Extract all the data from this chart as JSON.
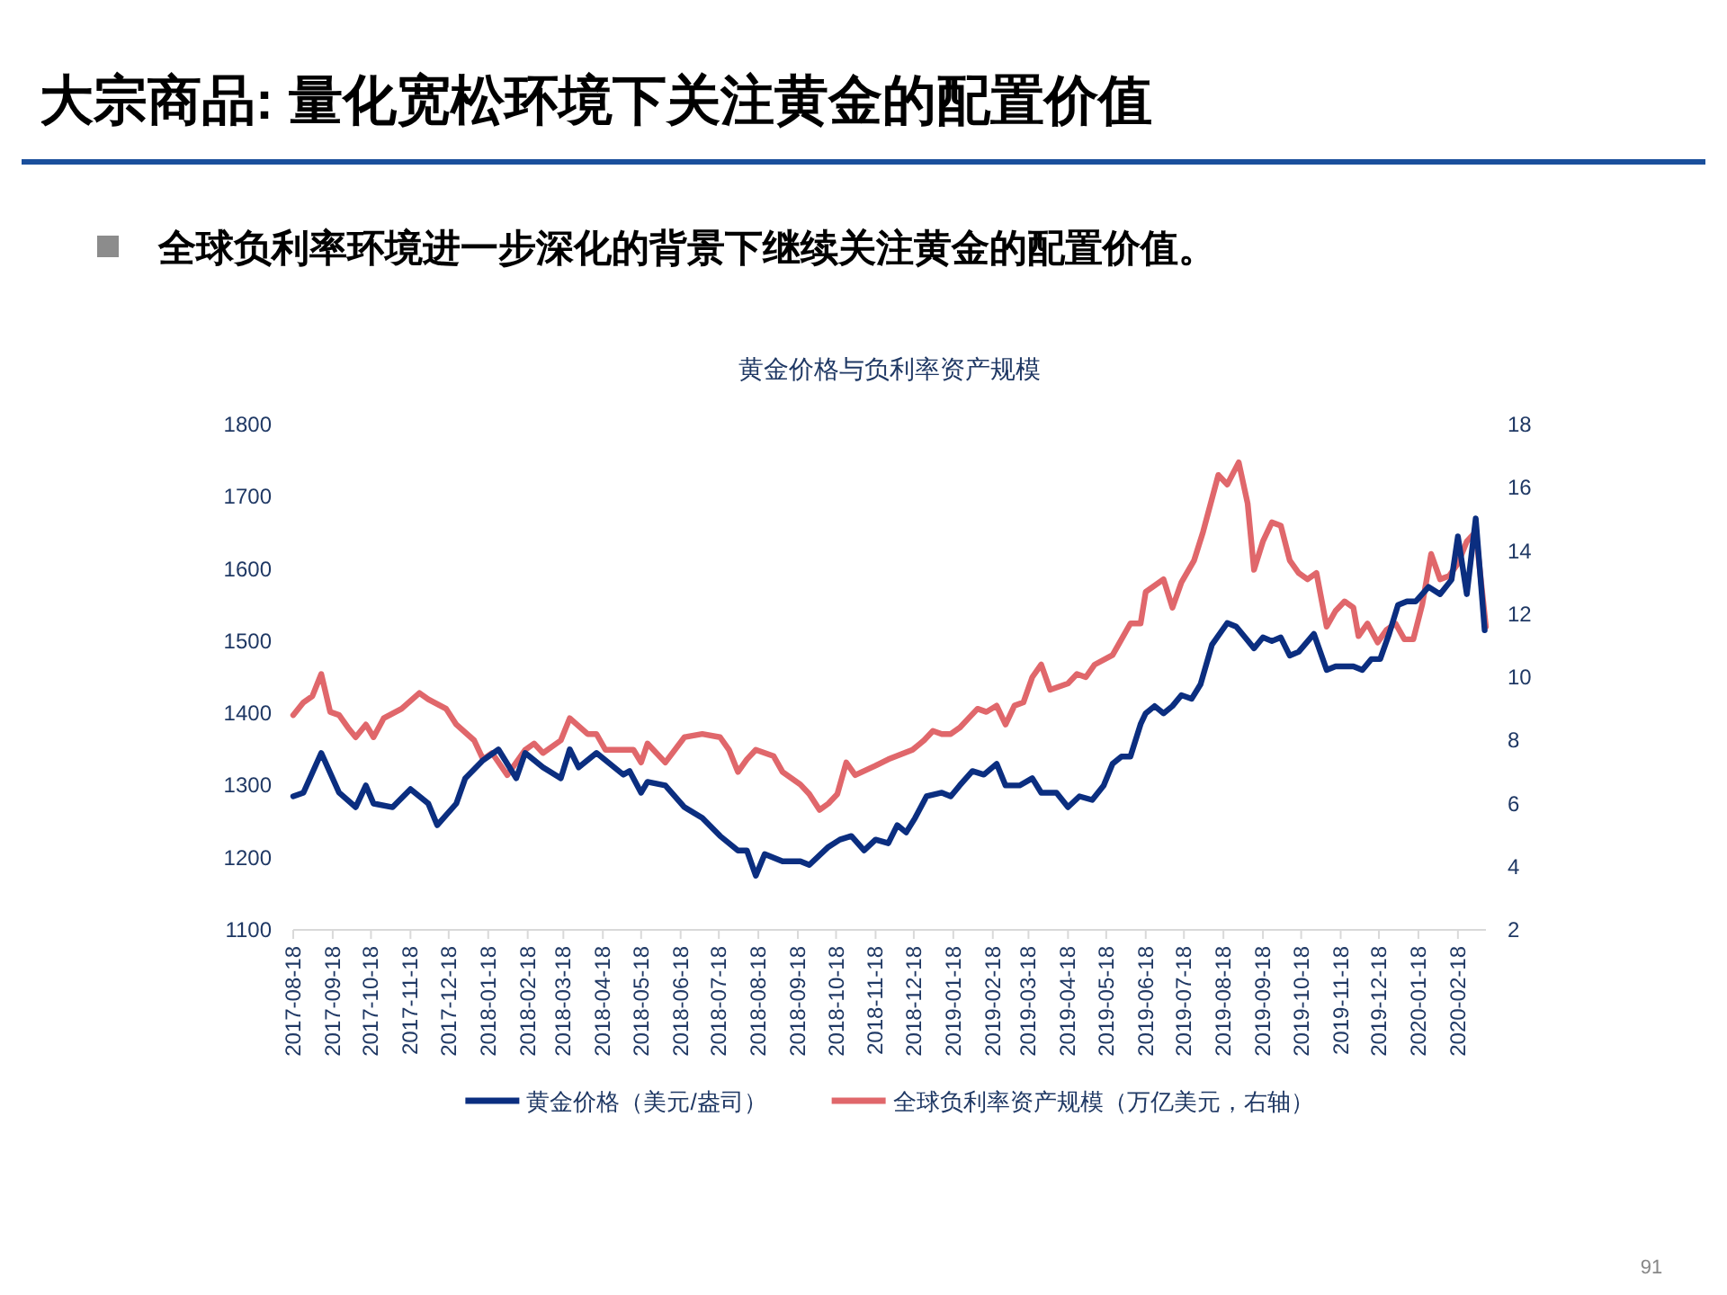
{
  "chart_data": {
    "type": "line",
    "title": "大宗商品: 量化宽松环境下关注黄金的配置价值",
    "subtitle": "全球负利率环境进一步深化的背景下继续关注黄金的配置价值。",
    "annotations": [
      "黄金价格与负利率资产规模",
      "91"
    ],
    "xlim": [
      "2017-08-18",
      "2020-03-11"
    ],
    "xticks": [
      "2017-08-18",
      "2017-09-18",
      "2017-10-18",
      "2017-11-18",
      "2017-12-18",
      "2018-01-18",
      "2018-02-18",
      "2018-03-18",
      "2018-04-18",
      "2018-05-18",
      "2018-06-18",
      "2018-07-18",
      "2018-08-18",
      "2018-09-18",
      "2018-10-18",
      "2018-11-18",
      "2018-12-18",
      "2019-01-18",
      "2019-02-18",
      "2019-03-18",
      "2019-04-18",
      "2019-05-18",
      "2019-06-18",
      "2019-07-18",
      "2019-08-18",
      "2019-09-18",
      "2019-10-18",
      "2019-11-18",
      "2019-12-18",
      "2020-01-18",
      "2020-02-18"
    ],
    "ylim": [
      1100,
      1800
    ],
    "yticks": [
      1100,
      1200,
      1300,
      1400,
      1500,
      1600,
      1700,
      1800
    ],
    "y2lim": [
      2,
      18
    ],
    "y2ticks": [
      2,
      4,
      6,
      8,
      10,
      12,
      14,
      16,
      18
    ],
    "legend": "bottom",
    "line_style": "solid",
    "series": [
      {
        "name": "黄金价格（美元/盎司）",
        "color": "#0b2e80",
        "x": [
          "2017-08-18",
          "2017-08-26",
          "2017-09-09",
          "2017-09-23",
          "2017-10-06",
          "2017-10-14",
          "2017-10-20",
          "2017-11-04",
          "2017-11-18",
          "2017-12-02",
          "2017-12-09",
          "2017-12-24",
          "2017-12-31",
          "2018-01-14",
          "2018-01-26",
          "2018-02-09",
          "2018-02-16",
          "2018-03-02",
          "2018-03-16",
          "2018-03-23",
          "2018-03-30",
          "2018-04-13",
          "2018-05-04",
          "2018-05-09",
          "2018-05-18",
          "2018-05-23",
          "2018-06-06",
          "2018-06-21",
          "2018-07-05",
          "2018-07-19",
          "2018-08-02",
          "2018-08-09",
          "2018-08-16",
          "2018-08-23",
          "2018-09-06",
          "2018-09-20",
          "2018-09-27",
          "2018-10-12",
          "2018-10-21",
          "2018-10-30",
          "2018-11-09",
          "2018-11-18",
          "2018-11-28",
          "2018-12-05",
          "2018-12-12",
          "2018-12-19",
          "2018-12-28",
          "2019-01-09",
          "2019-01-16",
          "2019-01-23",
          "2019-02-02",
          "2019-02-11",
          "2019-02-21",
          "2019-02-28",
          "2019-03-11",
          "2019-03-21",
          "2019-03-28",
          "2019-04-09",
          "2019-04-18",
          "2019-04-27",
          "2019-05-07",
          "2019-05-16",
          "2019-05-23",
          "2019-05-30",
          "2019-06-06",
          "2019-06-14",
          "2019-06-18",
          "2019-06-25",
          "2019-07-02",
          "2019-07-09",
          "2019-07-16",
          "2019-07-24",
          "2019-07-31",
          "2019-08-09",
          "2019-08-21",
          "2019-08-28",
          "2019-09-04",
          "2019-09-11",
          "2019-09-18",
          "2019-09-25",
          "2019-10-02",
          "2019-10-09",
          "2019-10-16",
          "2019-10-28",
          "2019-11-07",
          "2019-11-14",
          "2019-11-28",
          "2019-12-05",
          "2019-12-12",
          "2019-12-19",
          "2019-12-26",
          "2020-01-02",
          "2020-01-09",
          "2020-01-16",
          "2020-01-26",
          "2020-02-04",
          "2020-02-13",
          "2020-02-18",
          "2020-02-25",
          "2020-03-03",
          "2020-03-10"
        ],
        "values": [
          1285,
          1290,
          1345,
          1290,
          1270,
          1300,
          1275,
          1270,
          1295,
          1275,
          1245,
          1275,
          1310,
          1335,
          1350,
          1310,
          1345,
          1325,
          1310,
          1350,
          1325,
          1345,
          1315,
          1320,
          1290,
          1305,
          1300,
          1270,
          1255,
          1230,
          1210,
          1210,
          1175,
          1205,
          1195,
          1195,
          1190,
          1215,
          1225,
          1230,
          1210,
          1225,
          1220,
          1245,
          1235,
          1255,
          1285,
          1290,
          1285,
          1300,
          1320,
          1315,
          1330,
          1300,
          1300,
          1310,
          1290,
          1290,
          1270,
          1285,
          1280,
          1300,
          1330,
          1340,
          1340,
          1385,
          1400,
          1410,
          1400,
          1410,
          1425,
          1420,
          1440,
          1495,
          1525,
          1520,
          1505,
          1490,
          1505,
          1500,
          1505,
          1480,
          1485,
          1510,
          1460,
          1465,
          1465,
          1460,
          1475,
          1475,
          1510,
          1550,
          1555,
          1555,
          1575,
          1565,
          1585,
          1645,
          1565,
          1670,
          1515
        ]
      },
      {
        "name": "全球负利率资产规模（万亿美元，右轴）",
        "color": "#e0676b",
        "axis": "y2",
        "x": [
          "2017-08-18",
          "2017-08-26",
          "2017-09-02",
          "2017-09-09",
          "2017-09-16",
          "2017-09-23",
          "2017-09-30",
          "2017-10-06",
          "2017-10-14",
          "2017-10-20",
          "2017-10-28",
          "2017-11-11",
          "2017-11-25",
          "2017-12-02",
          "2017-12-16",
          "2017-12-24",
          "2018-01-07",
          "2018-01-14",
          "2018-01-21",
          "2018-02-02",
          "2018-02-16",
          "2018-02-23",
          "2018-03-02",
          "2018-03-16",
          "2018-03-23",
          "2018-04-06",
          "2018-04-13",
          "2018-04-20",
          "2018-05-04",
          "2018-05-12",
          "2018-05-18",
          "2018-05-23",
          "2018-06-06",
          "2018-06-21",
          "2018-07-05",
          "2018-07-19",
          "2018-07-26",
          "2018-08-02",
          "2018-08-09",
          "2018-08-16",
          "2018-08-30",
          "2018-09-06",
          "2018-09-20",
          "2018-09-27",
          "2018-10-05",
          "2018-10-12",
          "2018-10-19",
          "2018-10-26",
          "2018-11-02",
          "2018-11-18",
          "2018-11-28",
          "2018-12-17",
          "2018-12-26",
          "2019-01-02",
          "2019-01-09",
          "2019-01-16",
          "2019-01-23",
          "2019-01-30",
          "2019-02-06",
          "2019-02-13",
          "2019-02-21",
          "2019-02-28",
          "2019-03-07",
          "2019-03-14",
          "2019-03-21",
          "2019-03-28",
          "2019-04-04",
          "2019-04-18",
          "2019-04-25",
          "2019-05-02",
          "2019-05-09",
          "2019-05-23",
          "2019-05-30",
          "2019-06-06",
          "2019-06-14",
          "2019-06-18",
          "2019-07-02",
          "2019-07-09",
          "2019-07-16",
          "2019-07-26",
          "2019-08-02",
          "2019-08-14",
          "2019-08-21",
          "2019-08-30",
          "2019-09-06",
          "2019-09-11",
          "2019-09-18",
          "2019-09-25",
          "2019-10-02",
          "2019-10-09",
          "2019-10-16",
          "2019-10-23",
          "2019-10-30",
          "2019-11-07",
          "2019-11-14",
          "2019-11-21",
          "2019-11-28",
          "2019-12-02",
          "2019-12-09",
          "2019-12-17",
          "2019-12-24",
          "2019-12-31",
          "2020-01-07",
          "2020-01-14",
          "2020-01-21",
          "2020-01-28",
          "2020-02-04",
          "2020-02-11",
          "2020-02-18",
          "2020-02-25",
          "2020-03-03",
          "2020-03-11"
        ],
        "values": [
          8.8,
          9.2,
          9.4,
          10.1,
          8.9,
          8.8,
          8.4,
          8.1,
          8.5,
          8.1,
          8.7,
          9.0,
          9.5,
          9.3,
          9.0,
          8.5,
          8.0,
          7.4,
          7.6,
          6.9,
          7.7,
          7.9,
          7.6,
          8.0,
          8.7,
          8.2,
          8.2,
          7.7,
          7.7,
          7.7,
          7.3,
          7.9,
          7.3,
          8.1,
          8.2,
          8.1,
          7.7,
          7.0,
          7.4,
          7.7,
          7.5,
          7.0,
          6.6,
          6.3,
          5.8,
          6.0,
          6.3,
          7.3,
          6.9,
          7.2,
          7.4,
          7.7,
          8.0,
          8.3,
          8.2,
          8.2,
          8.4,
          8.7,
          9.0,
          8.9,
          9.1,
          8.5,
          9.1,
          9.2,
          10.0,
          10.4,
          9.6,
          9.8,
          10.1,
          10.0,
          10.4,
          10.7,
          11.2,
          11.7,
          11.7,
          12.7,
          13.1,
          12.2,
          13.0,
          13.7,
          14.6,
          16.4,
          16.1,
          16.8,
          15.5,
          13.4,
          14.3,
          14.9,
          14.8,
          13.7,
          13.3,
          13.1,
          13.3,
          11.6,
          12.1,
          12.4,
          12.2,
          11.3,
          11.7,
          11.1,
          11.5,
          11.7,
          11.2,
          11.2,
          12.3,
          13.9,
          13.1,
          13.2,
          13.6,
          14.3,
          14.6,
          11.6
        ]
      }
    ]
  }
}
